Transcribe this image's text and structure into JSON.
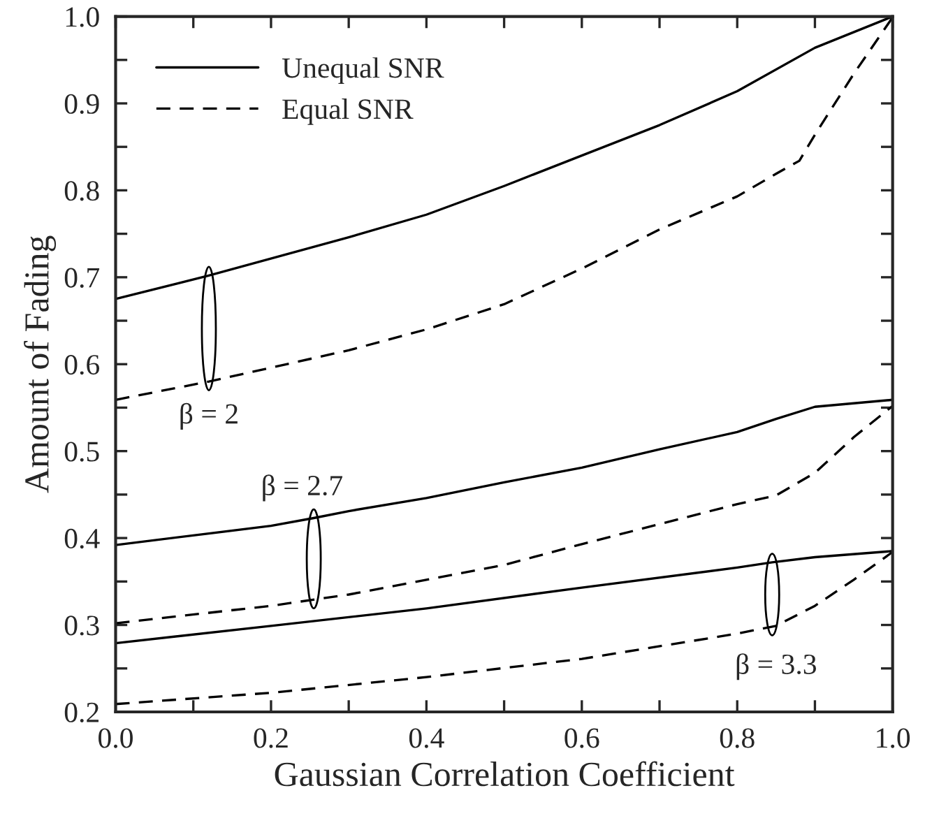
{
  "chart_data": {
    "type": "line",
    "xlabel": "Gaussian Correlation Coefficient",
    "ylabel": "Amount of Fading",
    "xlim": [
      0,
      1
    ],
    "ylim": [
      0.2,
      1.0
    ],
    "xticks": [
      {
        "value": 0,
        "label": "0.0"
      },
      {
        "value": 0.1,
        "label": null
      },
      0.2,
      {
        "value": 0.3,
        "label": null
      },
      0.4,
      {
        "value": 0.5,
        "label": null
      },
      0.6,
      {
        "value": 0.7,
        "label": null
      },
      0.8,
      {
        "value": 0.9,
        "label": null
      },
      {
        "value": 1,
        "label": "1.0"
      }
    ],
    "yticks": [
      0.2,
      {
        "value": 0.25,
        "label": null
      },
      0.3,
      {
        "value": 0.35,
        "label": null
      },
      0.4,
      {
        "value": 0.45,
        "label": null
      },
      0.5,
      {
        "value": 0.55,
        "label": null
      },
      0.6,
      {
        "value": 0.65,
        "label": null
      },
      0.7,
      {
        "value": 0.75,
        "label": null
      },
      0.8,
      {
        "value": 0.85,
        "label": null
      },
      0.9,
      {
        "value": 0.95,
        "label": null
      },
      {
        "value": 1.0,
        "label": "1.0"
      }
    ],
    "grid": false,
    "legend": "top left",
    "marker": "none",
    "series": [
      {
        "name": "Unequal SNR",
        "color": "#000000",
        "line_style": "solid",
        "x": [
          0,
          0.12,
          0.3,
          0.4,
          0.5,
          0.6,
          0.7,
          0.8,
          0.9,
          1.0
        ],
        "values": [
          0.675,
          0.702,
          0.746,
          0.772,
          0.805,
          0.84,
          0.875,
          0.914,
          0.964,
          1.0
        ]
      },
      {
        "name": "Equal SNR",
        "color": "#000000",
        "line_style": "dashed",
        "x": [
          0,
          0.12,
          0.3,
          0.4,
          0.5,
          0.6,
          0.7,
          0.8,
          0.85,
          0.88,
          0.9,
          0.95,
          1.0
        ],
        "values": [
          0.559,
          0.58,
          0.616,
          0.64,
          0.669,
          0.71,
          0.755,
          0.793,
          0.819,
          0.834,
          0.864,
          0.934,
          0.999
        ]
      },
      {
        "color": "#000000",
        "line_style": "solid",
        "x": [
          0,
          0.2,
          0.255,
          0.3,
          0.4,
          0.5,
          0.6,
          0.7,
          0.8,
          0.85,
          0.9,
          1.0
        ],
        "values": [
          0.392,
          0.414,
          0.423,
          0.431,
          0.446,
          0.464,
          0.481,
          0.502,
          0.522,
          0.537,
          0.551,
          0.559
        ]
      },
      {
        "color": "#000000",
        "line_style": "dashed",
        "x": [
          0,
          0.2,
          0.3,
          0.4,
          0.5,
          0.6,
          0.7,
          0.8,
          0.85,
          0.9,
          0.95,
          1.0
        ],
        "values": [
          0.302,
          0.322,
          0.335,
          0.352,
          0.369,
          0.393,
          0.416,
          0.439,
          0.449,
          0.475,
          0.516,
          0.552
        ]
      },
      {
        "color": "#000000",
        "line_style": "solid",
        "x": [
          0,
          0.2,
          0.4,
          0.6,
          0.8,
          0.845,
          0.9,
          1.0
        ],
        "values": [
          0.279,
          0.299,
          0.319,
          0.343,
          0.366,
          0.372,
          0.378,
          0.385
        ]
      },
      {
        "color": "#000000",
        "line_style": "dashed",
        "x": [
          0,
          0.2,
          0.4,
          0.6,
          0.8,
          0.85,
          0.9,
          0.95,
          1.0
        ],
        "values": [
          0.209,
          0.222,
          0.24,
          0.261,
          0.29,
          0.299,
          0.322,
          0.352,
          0.384
        ]
      }
    ],
    "annotations": [
      "β = 2",
      "β = 2.7",
      "β = 3.3"
    ]
  }
}
